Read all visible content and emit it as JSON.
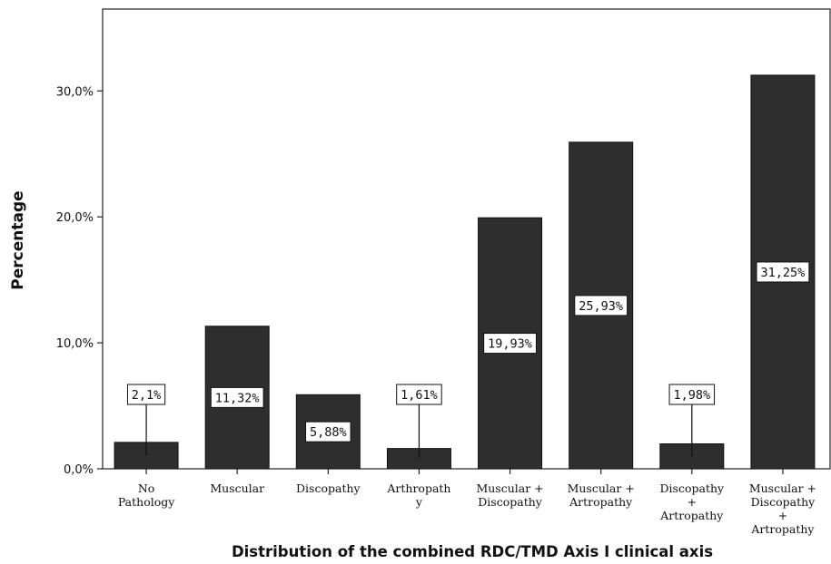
{
  "chart_data": {
    "type": "bar",
    "title": "",
    "xlabel": "Distribution of the combined RDC/TMD Axis I clinical axis",
    "ylabel": "Percentage",
    "ylim": [
      0,
      36.5
    ],
    "yticks": [
      0,
      10,
      20,
      30
    ],
    "ytick_labels": [
      "0,0%",
      "10,0%",
      "20,0%",
      "30,0%"
    ],
    "grid": false,
    "bar_color": "#2e2e2e",
    "categories": [
      [
        "No",
        "Pathology"
      ],
      [
        "Muscular"
      ],
      [
        "Discopathy"
      ],
      [
        "Arthropath",
        "y"
      ],
      [
        "Muscular +",
        "Discopathy"
      ],
      [
        "Muscular +",
        "Artropathy"
      ],
      [
        "Discopathy",
        "+",
        "Artropathy"
      ],
      [
        "Muscular +",
        "Discopathy",
        "+",
        "Artropathy"
      ]
    ],
    "values": [
      2.1,
      11.32,
      5.88,
      1.61,
      19.93,
      25.93,
      1.98,
      31.25
    ],
    "data_labels": [
      "2,1%",
      "11,32%",
      "5,88%",
      "1,61%",
      "19,93%",
      "25,93%",
      "1,98%",
      "31,25%"
    ],
    "label_above_bar": [
      true,
      false,
      false,
      true,
      false,
      false,
      true,
      false
    ]
  }
}
